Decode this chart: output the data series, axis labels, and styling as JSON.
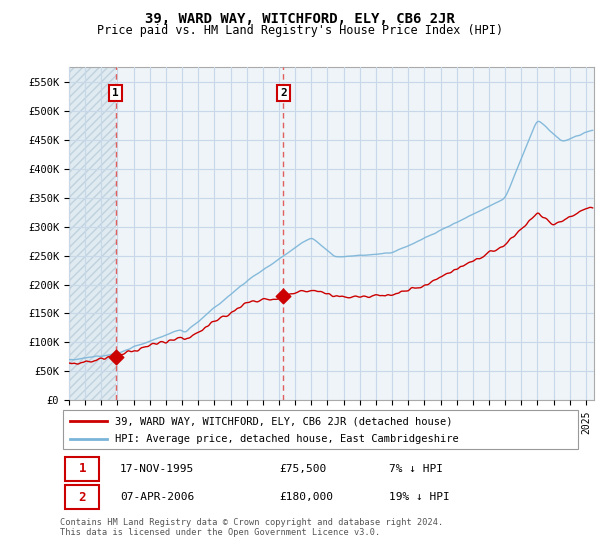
{
  "title": "39, WARD WAY, WITCHFORD, ELY, CB6 2JR",
  "subtitle": "Price paid vs. HM Land Registry's House Price Index (HPI)",
  "ylabel_ticks": [
    "£0",
    "£50K",
    "£100K",
    "£150K",
    "£200K",
    "£250K",
    "£300K",
    "£350K",
    "£400K",
    "£450K",
    "£500K",
    "£550K"
  ],
  "ytick_values": [
    0,
    50000,
    100000,
    150000,
    200000,
    250000,
    300000,
    350000,
    400000,
    450000,
    500000,
    550000
  ],
  "ylim": [
    0,
    575000
  ],
  "hpi_color": "#7ab4d8",
  "price_color": "#cc0000",
  "marker_color": "#cc0000",
  "vline_color": "#e06060",
  "annotation_border_color": "#cc0000",
  "bg_hatch_color": "#dce8f0",
  "bg_main_color": "#eef4f8",
  "grid_color": "#c8d8e8",
  "legend_label_price": "39, WARD WAY, WITCHFORD, ELY, CB6 2JR (detached house)",
  "legend_label_hpi": "HPI: Average price, detached house, East Cambridgeshire",
  "sale1_label": "1",
  "sale1_date": "17-NOV-1995",
  "sale1_price": "£75,500",
  "sale1_hpi": "7% ↓ HPI",
  "sale1_year": 1995.88,
  "sale1_value": 75500,
  "sale2_label": "2",
  "sale2_date": "07-APR-2006",
  "sale2_price": "£180,000",
  "sale2_hpi": "19% ↓ HPI",
  "sale2_year": 2006.27,
  "sale2_value": 180000,
  "footer": "Contains HM Land Registry data © Crown copyright and database right 2024.\nThis data is licensed under the Open Government Licence v3.0.",
  "xmin": 1993,
  "xmax": 2025.5
}
